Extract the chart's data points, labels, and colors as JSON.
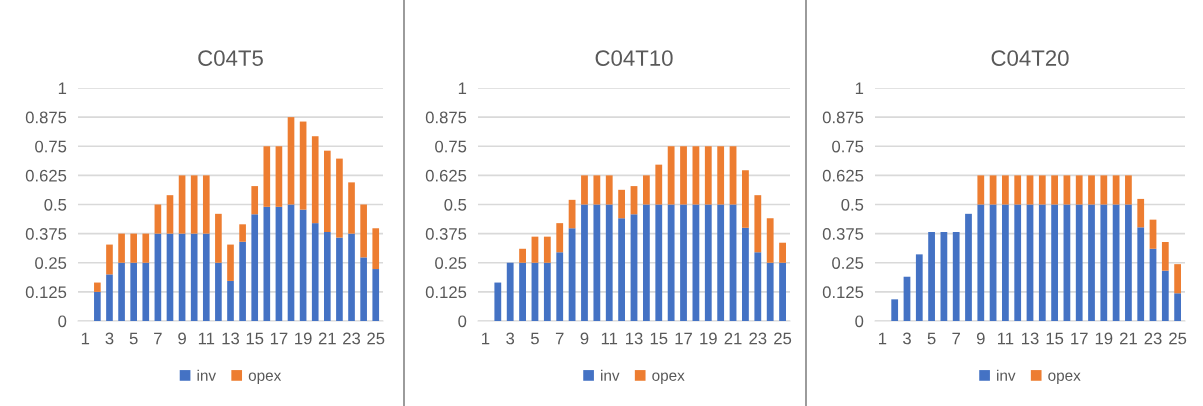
{
  "chart_data": [
    {
      "type": "bar",
      "title": "C04T5",
      "stacked": true,
      "grid": "y",
      "legend": "bottom",
      "categories": [
        "1",
        null,
        "3",
        null,
        "5",
        null,
        "7",
        null,
        "9",
        null,
        "11",
        null,
        "13",
        null,
        "15",
        null,
        "17",
        null,
        "19",
        null,
        "21",
        null,
        "23",
        null,
        "25"
      ],
      "ylim": [
        0,
        1
      ],
      "yticks": [
        0,
        0.125,
        0.25,
        0.375,
        0.5,
        0.625,
        0.75,
        0.875,
        1
      ],
      "series": [
        {
          "name": "inv",
          "color": "#4472c4",
          "values": [
            0,
            0.125,
            0.2,
            0.25,
            0.25,
            0.25,
            0.375,
            0.375,
            0.375,
            0.375,
            0.375,
            0.25,
            0.172,
            0.34,
            0.458,
            0.49,
            0.49,
            0.5,
            0.478,
            0.42,
            0.382,
            0.358,
            0.375,
            0.273,
            0.223
          ]
        },
        {
          "name": "opex",
          "color": "#ed7d31",
          "values": [
            0,
            0.04,
            0.128,
            0.125,
            0.125,
            0.125,
            0.125,
            0.165,
            0.25,
            0.25,
            0.25,
            0.21,
            0.156,
            0.075,
            0.121,
            0.26,
            0.26,
            0.375,
            0.378,
            0.373,
            0.349,
            0.339,
            0.22,
            0.227,
            0.175
          ]
        }
      ]
    },
    {
      "type": "bar",
      "title": "C04T10",
      "stacked": true,
      "grid": "y",
      "legend": "bottom",
      "categories": [
        "1",
        null,
        "3",
        null,
        "5",
        null,
        "7",
        null,
        "9",
        null,
        "11",
        null,
        "13",
        null,
        "15",
        null,
        "17",
        null,
        "19",
        null,
        "21",
        null,
        "23",
        null,
        "25"
      ],
      "ylim": [
        0,
        1
      ],
      "yticks": [
        0,
        0.125,
        0.25,
        0.375,
        0.5,
        0.625,
        0.75,
        0.875,
        1
      ],
      "series": [
        {
          "name": "inv",
          "color": "#4472c4",
          "values": [
            0,
            0.165,
            0.25,
            0.25,
            0.25,
            0.25,
            0.295,
            0.398,
            0.5,
            0.5,
            0.5,
            0.441,
            0.458,
            0.5,
            0.5,
            0.5,
            0.5,
            0.5,
            0.5,
            0.5,
            0.5,
            0.4,
            0.295,
            0.25,
            0.25
          ]
        },
        {
          "name": "opex",
          "color": "#ed7d31",
          "values": [
            0,
            0,
            0,
            0.06,
            0.112,
            0.112,
            0.125,
            0.122,
            0.125,
            0.125,
            0.125,
            0.122,
            0.121,
            0.125,
            0.171,
            0.25,
            0.25,
            0.25,
            0.25,
            0.25,
            0.25,
            0.247,
            0.245,
            0.191,
            0.086
          ]
        }
      ]
    },
    {
      "type": "bar",
      "title": "C04T20",
      "stacked": true,
      "grid": "y",
      "legend": "bottom",
      "categories": [
        "1",
        null,
        "3",
        null,
        "5",
        null,
        "7",
        null,
        "9",
        null,
        "11",
        null,
        "13",
        null,
        "15",
        null,
        "17",
        null,
        "19",
        null,
        "21",
        null,
        "23",
        null,
        "25"
      ],
      "ylim": [
        0,
        1
      ],
      "yticks": [
        0,
        0.125,
        0.25,
        0.375,
        0.5,
        0.625,
        0.75,
        0.875,
        1
      ],
      "series": [
        {
          "name": "inv",
          "color": "#4472c4",
          "values": [
            0,
            0.093,
            0.19,
            0.286,
            0.382,
            0.382,
            0.382,
            0.46,
            0.5,
            0.5,
            0.5,
            0.5,
            0.5,
            0.5,
            0.5,
            0.5,
            0.5,
            0.5,
            0.5,
            0.5,
            0.5,
            0.402,
            0.31,
            0.216,
            0.119
          ]
        },
        {
          "name": "opex",
          "color": "#ed7d31",
          "values": [
            0,
            0,
            0,
            0,
            0,
            0,
            0,
            0,
            0.125,
            0.125,
            0.125,
            0.125,
            0.125,
            0.125,
            0.125,
            0.125,
            0.125,
            0.125,
            0.125,
            0.125,
            0.125,
            0.122,
            0.125,
            0.123,
            0.125
          ]
        }
      ]
    }
  ]
}
